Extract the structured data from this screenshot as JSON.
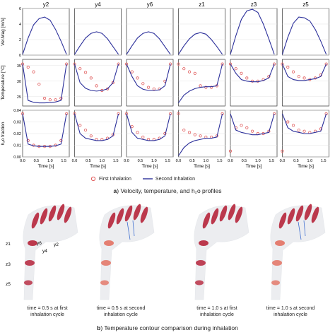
{
  "figure_a": {
    "columns": [
      "y2",
      "y4",
      "y6",
      "z1",
      "z3",
      "z5"
    ],
    "row_labels": [
      "Vel.Mag [m/s]",
      "Temperature [°C]",
      "h₂o fraction"
    ],
    "x_label": "Time [s]",
    "x_ticks": [
      "0.0",
      "0.5",
      "1.0",
      "1.5"
    ],
    "y_ticks": [
      [
        "0",
        "2",
        "4",
        "6"
      ],
      [
        "25",
        "30",
        "35"
      ],
      [
        "0.00",
        "0.01",
        "0.02",
        "0.03",
        "0.04"
      ]
    ],
    "legend": {
      "first": "First Inhalation",
      "second": "Second Inhalation"
    },
    "caption_letter": "a",
    "caption_text": ") Velocity, temperature, and h₂o profiles",
    "colors": {
      "first": "#e05a5a",
      "second": "#2b2f9a",
      "axis": "#333333"
    }
  },
  "chart_data": [
    {
      "type": "line",
      "title": "Vel.Mag [m/s] vs Time [s]",
      "x": [
        0.0,
        0.2,
        0.4,
        0.6,
        0.8,
        1.0,
        1.2,
        1.4,
        1.6
      ],
      "ylim": [
        0,
        6
      ],
      "series": [
        {
          "name": "y2 Second Inhalation",
          "values": [
            0.1,
            2.2,
            3.9,
            4.7,
            4.9,
            4.5,
            3.3,
            1.8,
            0.1
          ]
        },
        {
          "name": "y4 Second Inhalation",
          "values": [
            0.1,
            1.2,
            2.2,
            2.8,
            3.0,
            2.8,
            2.1,
            1.1,
            0.1
          ]
        },
        {
          "name": "y6 Second Inhalation",
          "values": [
            0.1,
            1.2,
            2.2,
            2.8,
            3.0,
            2.8,
            2.1,
            1.1,
            0.1
          ]
        },
        {
          "name": "z1 Second Inhalation",
          "values": [
            0.1,
            1.2,
            2.1,
            2.7,
            2.9,
            2.7,
            2.0,
            1.1,
            0.1
          ]
        },
        {
          "name": "z3 Second Inhalation",
          "values": [
            0.1,
            2.5,
            4.6,
            5.7,
            5.9,
            5.5,
            4.0,
            2.1,
            0.1
          ]
        },
        {
          "name": "z5 Second Inhalation",
          "values": [
            0.1,
            2.3,
            4.1,
            4.9,
            4.8,
            4.4,
            3.3,
            1.8,
            0.1
          ]
        }
      ]
    },
    {
      "type": "line",
      "title": "Temperature [°C] vs Time [s]",
      "x": [
        0.0,
        0.2,
        0.4,
        0.6,
        0.8,
        1.0,
        1.2,
        1.4,
        1.6
      ],
      "ylim": [
        22,
        37
      ],
      "series": [
        {
          "name": "y2 First Inhalation",
          "values": [
            35.5,
            34.5,
            33.0,
            29.0,
            24.5,
            24.0,
            24.0,
            24.5,
            35.5
          ]
        },
        {
          "name": "y2 Second Inhalation",
          "values": [
            35.5,
            23.8,
            23.2,
            23.0,
            23.0,
            23.1,
            23.3,
            23.8,
            35.5
          ]
        },
        {
          "name": "y4 First Inhalation",
          "values": [
            35.5,
            34.0,
            32.8,
            31.0,
            28.5,
            27.0,
            27.5,
            29.5,
            35.5
          ]
        },
        {
          "name": "y4 Second Inhalation",
          "values": [
            35.5,
            29.5,
            27.7,
            27.0,
            26.8,
            27.0,
            27.5,
            29.5,
            35.5
          ]
        },
        {
          "name": "y6 First Inhalation",
          "values": [
            35.5,
            33.0,
            31.0,
            29.2,
            28.0,
            27.5,
            27.5,
            30.0,
            35.5
          ]
        },
        {
          "name": "y6 Second Inhalation",
          "values": [
            35.5,
            31.5,
            28.5,
            27.4,
            27.0,
            27.0,
            27.2,
            28.5,
            35.5
          ]
        },
        {
          "name": "z1 First Inhalation",
          "values": [
            35.5,
            34.0,
            33.0,
            32.5,
            28.5,
            28.0,
            28.0,
            28.5,
            35.5
          ]
        },
        {
          "name": "z1 Second Inhalation",
          "values": [
            23.0,
            25.5,
            26.8,
            27.6,
            28.0,
            28.2,
            28.2,
            28.5,
            35.5
          ]
        },
        {
          "name": "z3 First Inhalation",
          "values": [
            35.5,
            34.0,
            32.5,
            31.0,
            30.0,
            30.0,
            30.5,
            31.5,
            35.5
          ]
        },
        {
          "name": "z3 Second Inhalation",
          "values": [
            35.5,
            32.5,
            30.5,
            30.0,
            29.8,
            29.8,
            30.2,
            31.0,
            35.5
          ]
        },
        {
          "name": "z5 First Inhalation",
          "values": [
            35.5,
            34.5,
            33.0,
            31.5,
            31.0,
            30.5,
            31.0,
            32.0,
            35.5
          ]
        },
        {
          "name": "z5 Second Inhalation",
          "values": [
            35.5,
            31.5,
            30.5,
            30.2,
            30.2,
            30.5,
            30.8,
            31.5,
            35.5
          ]
        }
      ]
    },
    {
      "type": "line",
      "title": "h₂o fraction vs Time [s]",
      "x": [
        0.0,
        0.2,
        0.4,
        0.6,
        0.8,
        1.0,
        1.2,
        1.4,
        1.6
      ],
      "ylim": [
        0.0,
        0.04
      ],
      "series": [
        {
          "name": "y2 First Inhalation",
          "values": [
            0.037,
            0.014,
            0.01,
            0.009,
            0.009,
            0.009,
            0.01,
            0.014,
            0.037
          ]
        },
        {
          "name": "y2 Second Inhalation",
          "values": [
            0.037,
            0.011,
            0.0095,
            0.009,
            0.009,
            0.009,
            0.0095,
            0.011,
            0.037
          ]
        },
        {
          "name": "y4 First Inhalation",
          "values": [
            0.037,
            0.027,
            0.023,
            0.018,
            0.015,
            0.015,
            0.016,
            0.019,
            0.037
          ]
        },
        {
          "name": "y4 Second Inhalation",
          "values": [
            0.037,
            0.02,
            0.016,
            0.015,
            0.014,
            0.014,
            0.015,
            0.018,
            0.037
          ]
        },
        {
          "name": "y6 First Inhalation",
          "values": [
            0.037,
            0.026,
            0.021,
            0.017,
            0.015,
            0.015,
            0.016,
            0.02,
            0.037
          ]
        },
        {
          "name": "y6 Second Inhalation",
          "values": [
            0.037,
            0.021,
            0.016,
            0.015,
            0.014,
            0.014,
            0.015,
            0.018,
            0.037
          ]
        },
        {
          "name": "z1 First Inhalation",
          "values": [
            0.037,
            0.023,
            0.021,
            0.019,
            0.018,
            0.017,
            0.017,
            0.018,
            0.037
          ]
        },
        {
          "name": "z1 Second Inhalation",
          "values": [
            0.001,
            0.008,
            0.012,
            0.014,
            0.015,
            0.016,
            0.016,
            0.017,
            0.037
          ]
        },
        {
          "name": "z3 First Inhalation",
          "values": [
            0.005,
            0.025,
            0.027,
            0.025,
            0.022,
            0.02,
            0.02,
            0.022,
            0.037
          ]
        },
        {
          "name": "z3 Second Inhalation",
          "values": [
            0.037,
            0.023,
            0.021,
            0.02,
            0.019,
            0.019,
            0.02,
            0.021,
            0.037
          ]
        },
        {
          "name": "z5 First Inhalation",
          "values": [
            0.005,
            0.03,
            0.027,
            0.023,
            0.022,
            0.021,
            0.022,
            0.024,
            0.037
          ]
        },
        {
          "name": "z5 Second Inhalation",
          "values": [
            0.037,
            0.025,
            0.022,
            0.021,
            0.02,
            0.02,
            0.021,
            0.022,
            0.037
          ]
        }
      ]
    }
  ],
  "figure_b": {
    "section_labels": [
      "z1",
      "y6",
      "y4",
      "y2",
      "z3",
      "z5"
    ],
    "time_labels": [
      {
        "line1": "time = 0.5 s at first",
        "line2": "inhalation cycle"
      },
      {
        "line1": "time = 0.5 s at second",
        "line2": "inhalation cycle"
      },
      {
        "line1": "time = 1.0 s at first",
        "line2": "inhalation cycle"
      },
      {
        "line1": "time = 1.0 s at second",
        "line2": "inhalation cycle"
      }
    ],
    "caption_letter": "b",
    "caption_text": ") Temperature contour comparison during inhalation",
    "colors": {
      "hot": "#b3172f",
      "warm": "#e36a5a",
      "airway": "#c9ced6",
      "streamline": "#3f6fd0"
    }
  }
}
